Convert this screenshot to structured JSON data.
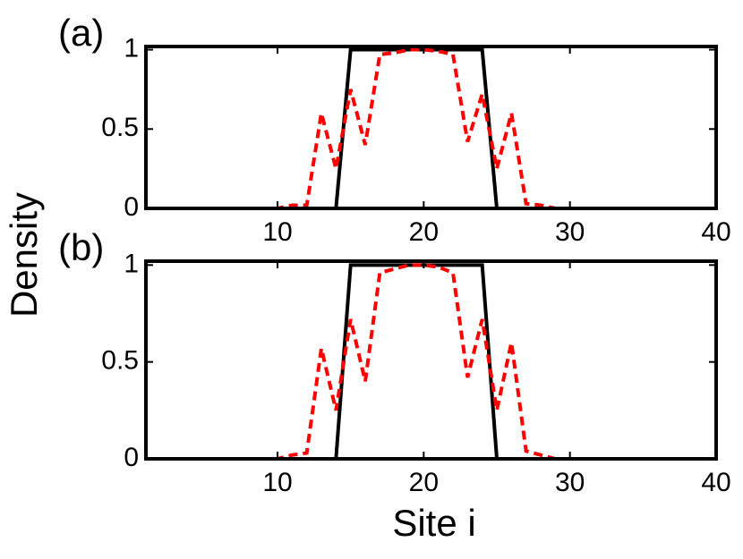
{
  "chart_data": [
    {
      "type": "line",
      "label": "(a)",
      "ylabel": "Density",
      "x": [
        1,
        2,
        3,
        4,
        5,
        6,
        7,
        8,
        9,
        10,
        11,
        12,
        13,
        14,
        15,
        16,
        17,
        18,
        19,
        20,
        21,
        22,
        23,
        24,
        25,
        26,
        27,
        28,
        29,
        30,
        31,
        32,
        33,
        34,
        35,
        36,
        37,
        38,
        39,
        40
      ],
      "series": [
        {
          "color": "#000000",
          "dash": false,
          "values": [
            0,
            0,
            0,
            0,
            0,
            0,
            0,
            0,
            0,
            0,
            0,
            0,
            0,
            0,
            1,
            1,
            1,
            1,
            1,
            1,
            1,
            1,
            1,
            1,
            0,
            0,
            0,
            0,
            0,
            0,
            0,
            0,
            0,
            0,
            0,
            0,
            0,
            0,
            0,
            0
          ]
        },
        {
          "color": "#ff0000",
          "dash": true,
          "values": [
            0,
            0,
            0,
            0,
            0,
            0,
            0,
            0,
            0,
            0,
            0.02,
            0.02,
            0.6,
            0.25,
            0.75,
            0.4,
            0.97,
            0.98,
            1.0,
            1.0,
            0.99,
            0.97,
            0.42,
            0.72,
            0.25,
            0.6,
            0.03,
            0.02,
            0,
            0,
            0,
            0,
            0,
            0,
            0,
            0,
            0,
            0,
            0,
            0
          ]
        }
      ],
      "xlim": [
        1,
        40
      ],
      "xticks": [
        10,
        20,
        30,
        40
      ],
      "ylim": [
        0,
        1.02
      ],
      "yticks": [
        0,
        0.5,
        1
      ]
    },
    {
      "type": "line",
      "label": "(b)",
      "xlabel": "Site i",
      "x": [
        1,
        2,
        3,
        4,
        5,
        6,
        7,
        8,
        9,
        10,
        11,
        12,
        13,
        14,
        15,
        16,
        17,
        18,
        19,
        20,
        21,
        22,
        23,
        24,
        25,
        26,
        27,
        28,
        29,
        30,
        31,
        32,
        33,
        34,
        35,
        36,
        37,
        38,
        39,
        40
      ],
      "series": [
        {
          "color": "#000000",
          "dash": false,
          "values": [
            0,
            0,
            0,
            0,
            0,
            0,
            0,
            0,
            0,
            0,
            0,
            0,
            0,
            0,
            1,
            1,
            1,
            1,
            1,
            1,
            1,
            1,
            1,
            1,
            0,
            0,
            0,
            0,
            0,
            0,
            0,
            0,
            0,
            0,
            0,
            0,
            0,
            0,
            0,
            0
          ]
        },
        {
          "color": "#ff0000",
          "dash": true,
          "values": [
            0,
            0,
            0,
            0,
            0,
            0,
            0,
            0,
            0,
            0,
            0.02,
            0.03,
            0.57,
            0.25,
            0.72,
            0.4,
            0.96,
            0.98,
            1.0,
            1.0,
            0.99,
            0.96,
            0.42,
            0.72,
            0.25,
            0.6,
            0.04,
            0.02,
            0,
            0,
            0,
            0,
            0,
            0,
            0,
            0,
            0,
            0,
            0,
            0
          ]
        }
      ],
      "xlim": [
        1,
        40
      ],
      "xticks": [
        10,
        20,
        30,
        40
      ],
      "ylim": [
        0,
        1.02
      ],
      "yticks": [
        0,
        0.5,
        1
      ]
    }
  ]
}
